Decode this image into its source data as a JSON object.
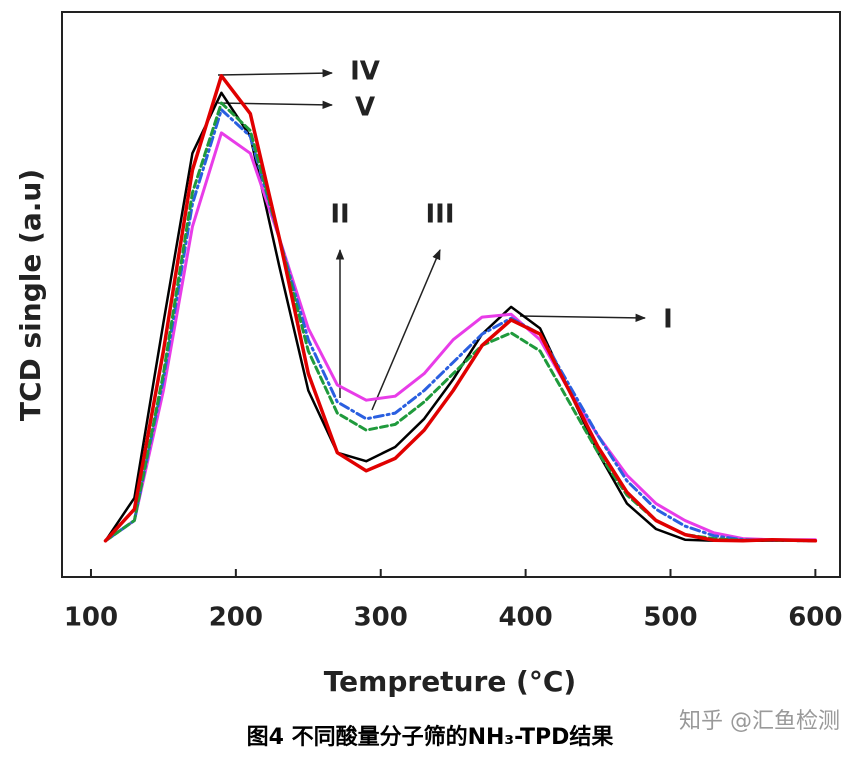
{
  "chart_data": {
    "type": "line",
    "ylabel": "TCD single (a.u)",
    "xlabel": "Tempreture (°C)",
    "caption": "图4 不同酸量分子筛的NH₃-TPD结果",
    "watermark": "知乎 @汇鱼检测",
    "x": [
      110,
      130,
      150,
      170,
      190,
      210,
      230,
      250,
      270,
      290,
      310,
      330,
      350,
      370,
      390,
      410,
      430,
      450,
      470,
      490,
      510,
      530,
      550,
      570,
      600
    ],
    "xlim": [
      80,
      617
    ],
    "xticks": [
      100,
      200,
      300,
      400,
      500,
      600
    ],
    "ylim": [
      0,
      100
    ],
    "series": [
      {
        "name": "I",
        "color": "#000000",
        "values": [
          6.4,
          14,
          45,
          75,
          85.7,
          78,
          55,
          33,
          22,
          20.5,
          23,
          28,
          35,
          43,
          47.8,
          44,
          33,
          22,
          13,
          8.5,
          6.6,
          6.4,
          6.4,
          6.4,
          6.4
        ]
      },
      {
        "name": "II",
        "color": "#e83ce8",
        "values": [
          6.4,
          10,
          33,
          62,
          78.6,
          75,
          60,
          44,
          34,
          31.3,
          32,
          36,
          42,
          46,
          46.5,
          42,
          33,
          25,
          18,
          13,
          10,
          7.8,
          6.8,
          6.6,
          6.6
        ]
      },
      {
        "name": "III",
        "color": "#2a5fe0",
        "values": [
          6.4,
          10,
          35,
          66,
          82.7,
          78,
          60,
          42,
          31,
          28,
          29,
          33,
          38,
          43,
          45.8,
          43,
          34,
          25,
          17,
          12,
          9,
          7.3,
          6.6,
          6.5,
          6.4
        ]
      },
      {
        "name": "IV",
        "color": "#e00000",
        "values": [
          6.4,
          12,
          40,
          72,
          88.7,
          82,
          60,
          36,
          22,
          18.8,
          21,
          26,
          33,
          41,
          45.5,
          43,
          33,
          23,
          15,
          10,
          7.5,
          6.5,
          6.4,
          6.6,
          6.4
        ]
      },
      {
        "name": "V",
        "color": "#1f9a3c",
        "values": [
          6.4,
          10,
          36,
          68,
          83.9,
          79,
          60,
          40,
          29,
          26,
          27,
          31,
          36,
          41,
          43.2,
          40,
          31,
          22,
          14.5,
          10,
          7.5,
          6.8,
          6.5,
          6.5,
          6.4
        ]
      }
    ]
  }
}
